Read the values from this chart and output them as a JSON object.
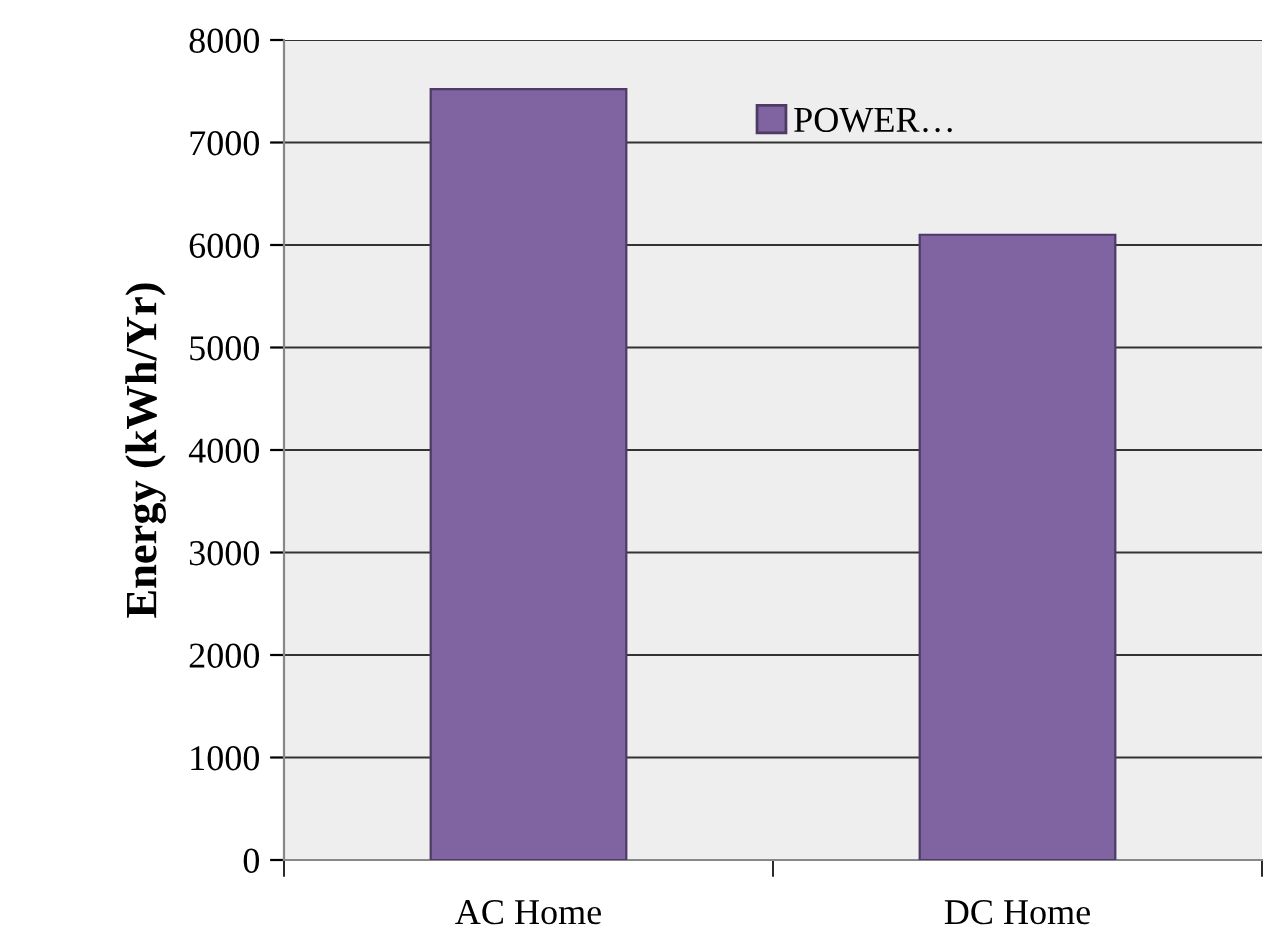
{
  "chart_data": {
    "type": "bar",
    "ylabel": "Energy (kWh/Yr)",
    "categories": [
      "AC Home",
      "DC Home"
    ],
    "series": [
      {
        "name": "POWER…",
        "color": "#8064a2",
        "values": [
          7520,
          6100
        ]
      }
    ],
    "ylim": [
      0,
      8000
    ],
    "yticks": [
      0,
      1000,
      2000,
      3000,
      4000,
      5000,
      6000,
      7000,
      8000
    ],
    "grid": "y",
    "legend": "top right"
  }
}
